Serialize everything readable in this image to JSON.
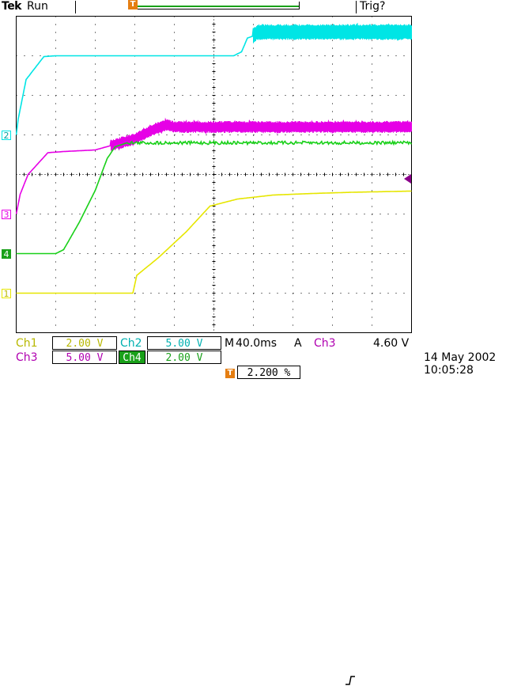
{
  "colors": {
    "ch1": "#e6e600",
    "ch2": "#00e5e5",
    "ch3": "#e600e6",
    "ch4": "#19d019",
    "trigger": "#e57e12"
  },
  "status": {
    "brand": "Tek",
    "acquisition": "Run",
    "trigger_state": "Trig?"
  },
  "markers": {
    "trigger_position": "T",
    "trigger_time": "T"
  },
  "channels": [
    {
      "id": "ch1",
      "marker": "1",
      "label": "Ch1",
      "volts_per_div": "2.00 V",
      "ground_div_from_top": 7.0
    },
    {
      "id": "ch2",
      "marker": "2",
      "label": "Ch2",
      "volts_per_div": "5.00 V",
      "ground_div_from_top": 3.0
    },
    {
      "id": "ch3",
      "marker": "3",
      "label": "Ch3",
      "volts_per_div": "5.00 V",
      "ground_div_from_top": 5.0
    },
    {
      "id": "ch4",
      "marker": "4",
      "label": "Ch4",
      "volts_per_div": "2.00 V",
      "ground_div_from_top": 6.0
    }
  ],
  "timebase": {
    "label": "M",
    "time_per_div": "40.0ms"
  },
  "trigger": {
    "mode": "A",
    "source": "Ch3",
    "slope_icon": "rising-edge-icon",
    "level": "4.60 V",
    "position_label": "2.200 %",
    "level_div_from_top": 4.1
  },
  "datetime": {
    "date": "14 May 2002",
    "time": "10:05:28"
  },
  "chart_data": {
    "type": "line",
    "divisions": {
      "x": 10,
      "y": 8
    },
    "series": [
      {
        "name": "Ch1",
        "color_key": "ch1",
        "points": [
          [
            0,
            7
          ],
          [
            2.95,
            7
          ],
          [
            3.05,
            6.55
          ],
          [
            3.6,
            6.1
          ],
          [
            4.3,
            5.45
          ],
          [
            4.9,
            4.8
          ],
          [
            5.6,
            4.62
          ],
          [
            6.5,
            4.52
          ],
          [
            7.5,
            4.48
          ],
          [
            8.5,
            4.45
          ],
          [
            10,
            4.42
          ]
        ]
      },
      {
        "name": "Ch2",
        "color_key": "ch2",
        "points": [
          [
            0,
            3
          ],
          [
            0.05,
            2.6
          ],
          [
            0.25,
            1.6
          ],
          [
            0.7,
            1.02
          ],
          [
            1.0,
            1.0
          ],
          [
            5.5,
            1.0
          ],
          [
            5.7,
            0.9
          ],
          [
            5.85,
            0.55
          ],
          [
            6.0,
            0.5
          ],
          [
            6.1,
            0.4
          ],
          [
            10,
            0.4
          ]
        ],
        "noise_from_x": 6.0,
        "noise_amp": 0.2
      },
      {
        "name": "Ch3",
        "color_key": "ch3",
        "points": [
          [
            0,
            5
          ],
          [
            0.1,
            4.5
          ],
          [
            0.3,
            4.0
          ],
          [
            0.8,
            3.45
          ],
          [
            1.2,
            3.42
          ],
          [
            2.0,
            3.38
          ],
          [
            3.0,
            3.1
          ],
          [
            3.5,
            2.85
          ],
          [
            3.8,
            2.75
          ],
          [
            4.0,
            2.8
          ],
          [
            10,
            2.8
          ]
        ],
        "noise_from_x": 2.4,
        "noise_amp": 0.15
      },
      {
        "name": "Ch4",
        "color_key": "ch4",
        "points": [
          [
            0,
            6
          ],
          [
            1.0,
            6
          ],
          [
            1.2,
            5.9
          ],
          [
            1.6,
            5.2
          ],
          [
            2.0,
            4.4
          ],
          [
            2.3,
            3.6
          ],
          [
            2.5,
            3.3
          ],
          [
            2.8,
            3.2
          ],
          [
            10,
            3.2
          ]
        ],
        "noise_from_x": 2.8,
        "noise_amp": 0.04
      }
    ]
  }
}
